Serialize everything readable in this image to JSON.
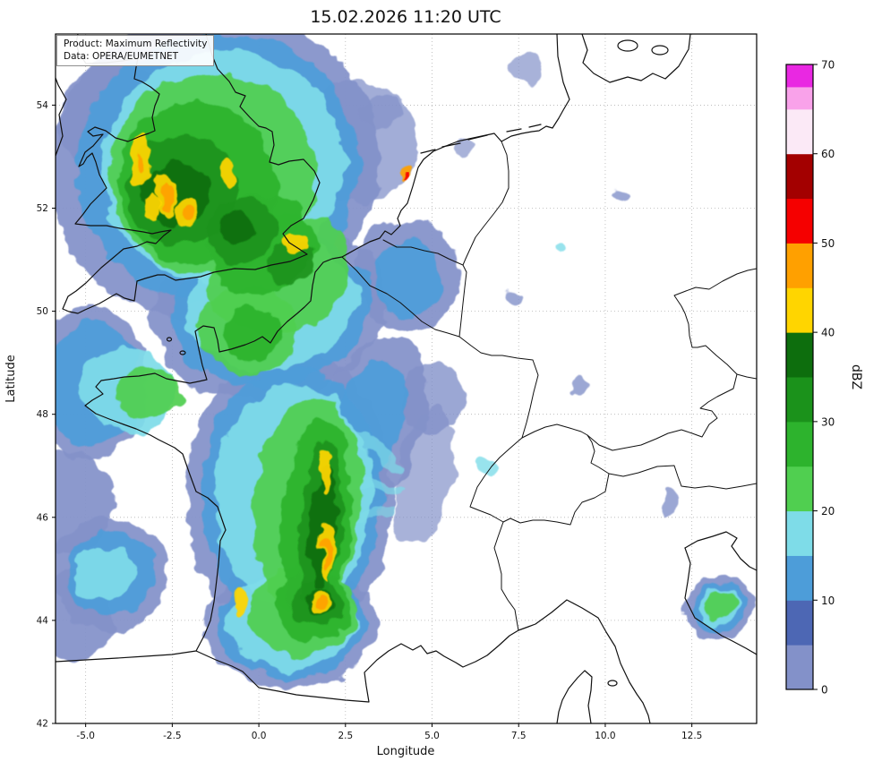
{
  "title": "15.02.2026 11:20 UTC",
  "annotation": {
    "line1": "Product: Maximum Reflectivity",
    "line2": "Data: OPERA/EUMETNET"
  },
  "colors": {
    "background": "#ffffff",
    "frame": "#000000",
    "grid": "#b3b3b3",
    "map_lines": "#111111"
  },
  "chart_data": {
    "type": "heatmap",
    "title": "15.02.2026 11:20 UTC",
    "xlabel": "Longitude",
    "ylabel": "Latitude",
    "xlim": [
      -5.87,
      14.37
    ],
    "ylim": [
      42.0,
      55.38
    ],
    "grid": true,
    "x_ticks_lon": [
      -5.0,
      -2.5,
      0.0,
      2.5,
      5.0,
      7.5,
      10.0,
      12.5
    ],
    "x_tick_labels": [
      "-5.0",
      "-2.5",
      "0.0",
      "2.5",
      "5.0",
      "7.5",
      "10.0",
      "12.5"
    ],
    "y_ticks_lat": [
      42,
      44,
      46,
      48,
      50,
      52,
      54
    ],
    "y_tick_labels": [
      "42",
      "44",
      "46",
      "48",
      "50",
      "52",
      "54"
    ],
    "colorbar": {
      "label": "dBZ",
      "lim": [
        0,
        70
      ],
      "ticks": [
        0,
        10,
        20,
        30,
        40,
        50,
        60,
        70
      ],
      "segments": [
        {
          "from": 0,
          "to": 5,
          "color": "#8391c9"
        },
        {
          "from": 5,
          "to": 10,
          "color": "#4d67b4"
        },
        {
          "from": 10,
          "to": 15,
          "color": "#4d9dd9"
        },
        {
          "from": 15,
          "to": 20,
          "color": "#7edce8"
        },
        {
          "from": 20,
          "to": 25,
          "color": "#50cf50"
        },
        {
          "from": 25,
          "to": 30,
          "color": "#2db32d"
        },
        {
          "from": 30,
          "to": 35,
          "color": "#1b921b"
        },
        {
          "from": 35,
          "to": 40,
          "color": "#0d6e0d"
        },
        {
          "from": 40,
          "to": 45,
          "color": "#ffd500"
        },
        {
          "from": 45,
          "to": 50,
          "color": "#ffa000"
        },
        {
          "from": 50,
          "to": 55,
          "color": "#f50000"
        },
        {
          "from": 55,
          "to": 60,
          "color": "#a30000"
        },
        {
          "from": 60,
          "to": 65,
          "color": "#fbe9f6"
        },
        {
          "from": 65,
          "to": 67.5,
          "color": "#f9a2ea"
        },
        {
          "from": 67.5,
          "to": 70,
          "color": "#e928e2"
        }
      ]
    },
    "level_order": [
      "0",
      "10",
      "15",
      "20",
      "25",
      "30",
      "35",
      "40",
      "45",
      "50"
    ],
    "levels_dbz_colors": {
      "0": "#8391c9",
      "10": "#4d9dd9",
      "15": "#7edce8",
      "20": "#50cf50",
      "25": "#2db32d",
      "30": "#1b921b",
      "35": "#0d6e0d",
      "40": "#ffd500",
      "45": "#ffa000",
      "50": "#f50000"
    },
    "echo_format": [
      "lon",
      "lat",
      "rx_deg",
      "ry_deg",
      "rotation_deg",
      "level_dbz",
      "opacity"
    ],
    "echoes": [
      [
        -1.3,
        52.8,
        4.8,
        3.0,
        -15,
        "0"
      ],
      [
        0.3,
        50.0,
        3.4,
        1.7,
        -10,
        "0"
      ],
      [
        -4.9,
        48.6,
        1.7,
        1.5,
        0,
        "0"
      ],
      [
        0.9,
        46.4,
        3.0,
        2.8,
        0,
        "0"
      ],
      [
        0.9,
        43.9,
        2.5,
        1.2,
        0,
        "0"
      ],
      [
        -4.3,
        44.9,
        1.7,
        1.1,
        -20,
        "0"
      ],
      [
        -5.4,
        46.3,
        1.2,
        1.0,
        0,
        "0"
      ],
      [
        -5.3,
        44.1,
        1.1,
        0.9,
        0,
        "0"
      ],
      [
        3.2,
        47.8,
        1.5,
        1.8,
        20,
        "0"
      ],
      [
        4.3,
        50.7,
        1.5,
        1.1,
        -20,
        "0"
      ],
      [
        13.3,
        44.25,
        1.0,
        0.6,
        -30,
        "0"
      ],
      [
        -4.0,
        53.7,
        1.8,
        1.1,
        0,
        "0"
      ],
      [
        2.9,
        53.3,
        1.7,
        1.2,
        0,
        "0",
        0.75
      ],
      [
        3.6,
        53.9,
        0.6,
        0.35,
        0,
        "0",
        0.7
      ],
      [
        7.8,
        54.7,
        0.5,
        0.3,
        0,
        "0",
        0.7
      ],
      [
        5.0,
        48.3,
        0.9,
        0.7,
        0,
        "0",
        0.8
      ],
      [
        4.8,
        46.8,
        0.8,
        1.4,
        10,
        "0",
        0.7
      ],
      [
        7.4,
        50.3,
        0.25,
        0.14,
        0,
        "0",
        0.8
      ],
      [
        9.3,
        48.6,
        0.22,
        0.12,
        0,
        "0",
        0.8
      ],
      [
        10.5,
        52.3,
        0.2,
        0.1,
        0,
        "0",
        0.8
      ],
      [
        11.8,
        46.3,
        0.18,
        0.28,
        0,
        "0",
        0.8
      ],
      [
        5.9,
        53.2,
        0.3,
        0.18,
        0,
        "0",
        0.7
      ],
      [
        -1.2,
        52.8,
        4.1,
        2.6,
        -15,
        "10"
      ],
      [
        0.35,
        50.0,
        2.9,
        1.45,
        -10,
        "10"
      ],
      [
        -4.8,
        48.55,
        1.4,
        1.2,
        0,
        "10"
      ],
      [
        0.95,
        46.4,
        2.6,
        2.5,
        0,
        "10"
      ],
      [
        0.95,
        43.95,
        2.1,
        1.05,
        0,
        "10"
      ],
      [
        -4.3,
        44.9,
        1.3,
        0.8,
        -20,
        "10"
      ],
      [
        13.3,
        44.27,
        0.75,
        0.45,
        -30,
        "10"
      ],
      [
        4.3,
        50.65,
        1.0,
        0.75,
        -20,
        "10"
      ],
      [
        3.1,
        47.8,
        1.0,
        1.3,
        20,
        "10"
      ],
      [
        -1.05,
        52.8,
        3.5,
        2.25,
        -15,
        "15"
      ],
      [
        0.4,
        50.1,
        2.5,
        1.2,
        -10,
        "15"
      ],
      [
        1.0,
        46.4,
        2.25,
        2.2,
        0,
        "15"
      ],
      [
        0.95,
        44.0,
        1.85,
        0.95,
        0,
        "15"
      ],
      [
        -3.8,
        48.45,
        1.4,
        0.8,
        10,
        "15"
      ],
      [
        -4.5,
        44.9,
        0.9,
        0.55,
        -20,
        "15"
      ],
      [
        13.3,
        44.28,
        0.55,
        0.33,
        -30,
        "15"
      ],
      [
        3.15,
        47.4,
        1.1,
        0.14,
        35,
        "15",
        0.7
      ],
      [
        3.3,
        46.6,
        1.0,
        0.11,
        10,
        "15",
        0.7
      ],
      [
        3.0,
        46.0,
        0.95,
        0.1,
        -15,
        "15",
        0.6
      ],
      [
        6.6,
        47.0,
        0.3,
        0.15,
        0,
        "15",
        0.8
      ],
      [
        8.6,
        51.2,
        0.18,
        0.1,
        0,
        "15",
        0.8
      ],
      [
        -1.35,
        52.65,
        3.0,
        1.95,
        -15,
        "20"
      ],
      [
        0.6,
        50.75,
        2.1,
        1.15,
        -20,
        "20"
      ],
      [
        -0.3,
        49.65,
        1.5,
        0.85,
        0,
        "20"
      ],
      [
        1.4,
        46.25,
        1.55,
        2.1,
        5,
        "20"
      ],
      [
        1.3,
        44.2,
        1.5,
        0.9,
        0,
        "20"
      ],
      [
        -3.2,
        48.4,
        0.95,
        0.5,
        10,
        "20"
      ],
      [
        13.33,
        44.3,
        0.42,
        0.24,
        -30,
        "20"
      ],
      [
        -1.8,
        52.5,
        2.3,
        1.55,
        -15,
        "25"
      ],
      [
        0.05,
        51.3,
        1.6,
        0.95,
        -25,
        "25"
      ],
      [
        1.65,
        46.0,
        1.0,
        1.95,
        5,
        "25"
      ],
      [
        1.55,
        44.3,
        1.05,
        0.72,
        0,
        "25"
      ],
      [
        -0.2,
        49.55,
        0.9,
        0.5,
        0,
        "25"
      ],
      [
        -2.2,
        52.35,
        1.6,
        1.05,
        -15,
        "30"
      ],
      [
        -0.5,
        51.55,
        1.05,
        0.62,
        -25,
        "30"
      ],
      [
        1.8,
        45.9,
        0.6,
        1.6,
        5,
        "30"
      ],
      [
        1.68,
        44.33,
        0.65,
        0.48,
        0,
        "30"
      ],
      [
        0.9,
        50.9,
        0.65,
        0.38,
        -20,
        "30"
      ],
      [
        -2.35,
        52.3,
        0.95,
        0.6,
        -15,
        "35"
      ],
      [
        1.85,
        45.8,
        0.38,
        1.15,
        5,
        "35"
      ],
      [
        -0.6,
        51.6,
        0.5,
        0.3,
        -25,
        "35"
      ],
      [
        1.7,
        44.35,
        0.36,
        0.3,
        0,
        "35"
      ],
      [
        -3.4,
        52.85,
        0.32,
        0.5,
        0,
        "40"
      ],
      [
        -2.7,
        52.3,
        0.28,
        0.42,
        -20,
        "40"
      ],
      [
        -2.1,
        51.9,
        0.26,
        0.32,
        0,
        "40"
      ],
      [
        -0.9,
        52.65,
        0.22,
        0.28,
        0,
        "40"
      ],
      [
        1.0,
        51.3,
        0.3,
        0.18,
        -30,
        "40"
      ],
      [
        1.9,
        46.9,
        0.18,
        0.45,
        0,
        "40"
      ],
      [
        2.0,
        45.35,
        0.2,
        0.6,
        0,
        "40"
      ],
      [
        1.72,
        44.35,
        0.26,
        0.26,
        0,
        "40"
      ],
      [
        -0.55,
        44.35,
        0.26,
        0.2,
        0,
        "40"
      ],
      [
        -3.0,
        52.0,
        0.2,
        0.3,
        -10,
        "40"
      ],
      [
        -2.65,
        52.25,
        0.16,
        0.26,
        -20,
        "45"
      ],
      [
        -2.05,
        51.87,
        0.13,
        0.17,
        0,
        "45"
      ],
      [
        1.97,
        45.3,
        0.11,
        0.35,
        0,
        "45"
      ],
      [
        1.74,
        44.36,
        0.15,
        0.15,
        0,
        "45"
      ],
      [
        4.2,
        52.65,
        0.11,
        0.09,
        0,
        "45"
      ],
      [
        -3.38,
        52.8,
        0.13,
        0.2,
        0,
        "45"
      ],
      [
        4.24,
        52.62,
        0.06,
        0.05,
        0,
        "50"
      ]
    ]
  }
}
